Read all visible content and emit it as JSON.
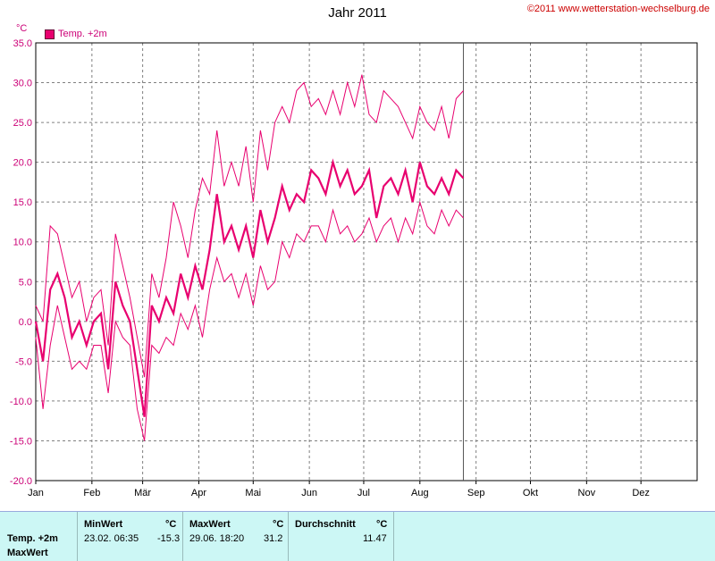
{
  "header": {
    "title": "Jahr 2011",
    "copyright": "©2011 www.wetterstation-wechselburg.de"
  },
  "legend": {
    "unit": "°C",
    "series_label": "Temp. +2m"
  },
  "colors": {
    "series": "#e8006f",
    "grid": "#808080",
    "axis_text": "#cc0077"
  },
  "chart_data": {
    "type": "line",
    "title": "Jahr 2011",
    "ylabel": "°C",
    "xlabel": "",
    "ylim": [
      -20,
      35
    ],
    "yticks": [
      "35.0",
      "30.0",
      "25.0",
      "20.0",
      "15.0",
      "10.0",
      "5.0",
      "0.0",
      "-5.0",
      "-10.0",
      "-15.0",
      "-20.0"
    ],
    "months": [
      "Jan",
      "Feb",
      "Mär",
      "Apr",
      "Mai",
      "Jun",
      "Jul",
      "Aug",
      "Sep",
      "Okt",
      "Nov",
      "Dez"
    ],
    "grid": true,
    "legend_position": "top-left",
    "current_date_marker": "2011-08-25",
    "series": [
      {
        "name": "Temp. +2m",
        "days": [
          1,
          5,
          9,
          13,
          17,
          21,
          25,
          29,
          33,
          37,
          41,
          45,
          49,
          53,
          57,
          61,
          65,
          69,
          73,
          77,
          81,
          85,
          89,
          93,
          97,
          101,
          105,
          109,
          113,
          117,
          121,
          125,
          129,
          133,
          137,
          141,
          145,
          149,
          153,
          157,
          161,
          165,
          169,
          173,
          177,
          181,
          185,
          189,
          193,
          197,
          201,
          205,
          209,
          213,
          217,
          221,
          225,
          229,
          233,
          237
        ],
        "avg": [
          0,
          -5,
          4,
          6,
          3,
          -2,
          0,
          -3,
          0,
          1,
          -6,
          5,
          2,
          0,
          -6,
          -12,
          2,
          0,
          3,
          1,
          6,
          3,
          7,
          4,
          9,
          16,
          10,
          12,
          9,
          12,
          8,
          14,
          10,
          13,
          17,
          14,
          16,
          15,
          19,
          18,
          16,
          20,
          17,
          19,
          16,
          17,
          19,
          13,
          17,
          18,
          16,
          19,
          15,
          20,
          17,
          16,
          18,
          16,
          19,
          18
        ],
        "max": [
          2,
          0,
          12,
          11,
          7,
          3,
          5,
          0,
          3,
          4,
          -3,
          11,
          7,
          3,
          -2,
          -7,
          6,
          3,
          8,
          15,
          12,
          8,
          14,
          18,
          16,
          24,
          17,
          20,
          17,
          22,
          15,
          24,
          19,
          25,
          27,
          25,
          29,
          30,
          27,
          28,
          26,
          29,
          26,
          30,
          27,
          31,
          26,
          25,
          29,
          28,
          27,
          25,
          23,
          27,
          25,
          24,
          27,
          23,
          28,
          29
        ],
        "min": [
          -2,
          -11,
          -3,
          2,
          -2,
          -6,
          -5,
          -6,
          -3,
          -3,
          -9,
          0,
          -2,
          -3,
          -11,
          -15,
          -3,
          -4,
          -2,
          -3,
          1,
          -1,
          2,
          -2,
          4,
          8,
          5,
          6,
          3,
          6,
          2,
          7,
          4,
          5,
          10,
          8,
          11,
          10,
          12,
          12,
          10,
          14,
          11,
          12,
          10,
          11,
          13,
          10,
          12,
          13,
          10,
          13,
          11,
          15,
          12,
          11,
          14,
          12,
          14,
          13
        ]
      }
    ]
  },
  "stats": {
    "row_label": "Temp. +2m",
    "row_label_2": "MaxWert",
    "min": {
      "head": "MinWert",
      "unit": "°C",
      "when": "23.02.  06:35",
      "value": "-15.3"
    },
    "max": {
      "head": "MaxWert",
      "unit": "°C",
      "when": "29.06.  18:20",
      "value": "31.2"
    },
    "avg": {
      "head": "Durchschnitt",
      "unit": "°C",
      "value": "11.47"
    }
  }
}
